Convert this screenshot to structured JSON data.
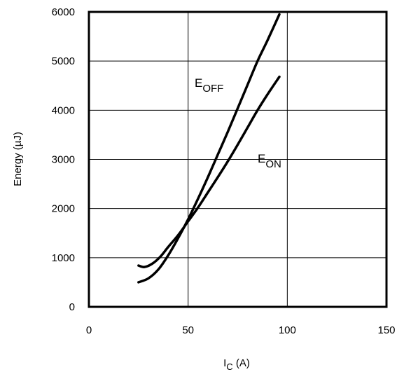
{
  "chart_data": {
    "type": "line",
    "xlabel": {
      "main": "I",
      "sub": "C",
      "rest": " (A)"
    },
    "ylabel": "Energy (µJ)",
    "xlim": [
      0,
      150
    ],
    "ylim": [
      0,
      6000
    ],
    "xticks": [
      0,
      50,
      100,
      150
    ],
    "yticks": [
      0,
      1000,
      2000,
      3000,
      4000,
      5000,
      6000
    ],
    "grid": true,
    "series": [
      {
        "name": "E_OFF",
        "label_main": "E",
        "label_sub": "OFF",
        "x": [
          25,
          30,
          35,
          40,
          45,
          50,
          55,
          60,
          65,
          70,
          75,
          80,
          85,
          90,
          96
        ],
        "y": [
          500,
          580,
          760,
          1050,
          1400,
          1780,
          2200,
          2640,
          3100,
          3560,
          4040,
          4520,
          5000,
          5420,
          5950
        ]
      },
      {
        "name": "E_ON",
        "label_main": "E",
        "label_sub": "ON",
        "x": [
          25,
          28,
          32,
          36,
          40,
          45,
          50,
          55,
          60,
          65,
          70,
          75,
          80,
          85,
          90,
          96
        ],
        "y": [
          840,
          810,
          880,
          1020,
          1220,
          1460,
          1740,
          2020,
          2330,
          2640,
          2960,
          3300,
          3650,
          4000,
          4320,
          4680
        ]
      }
    ]
  }
}
